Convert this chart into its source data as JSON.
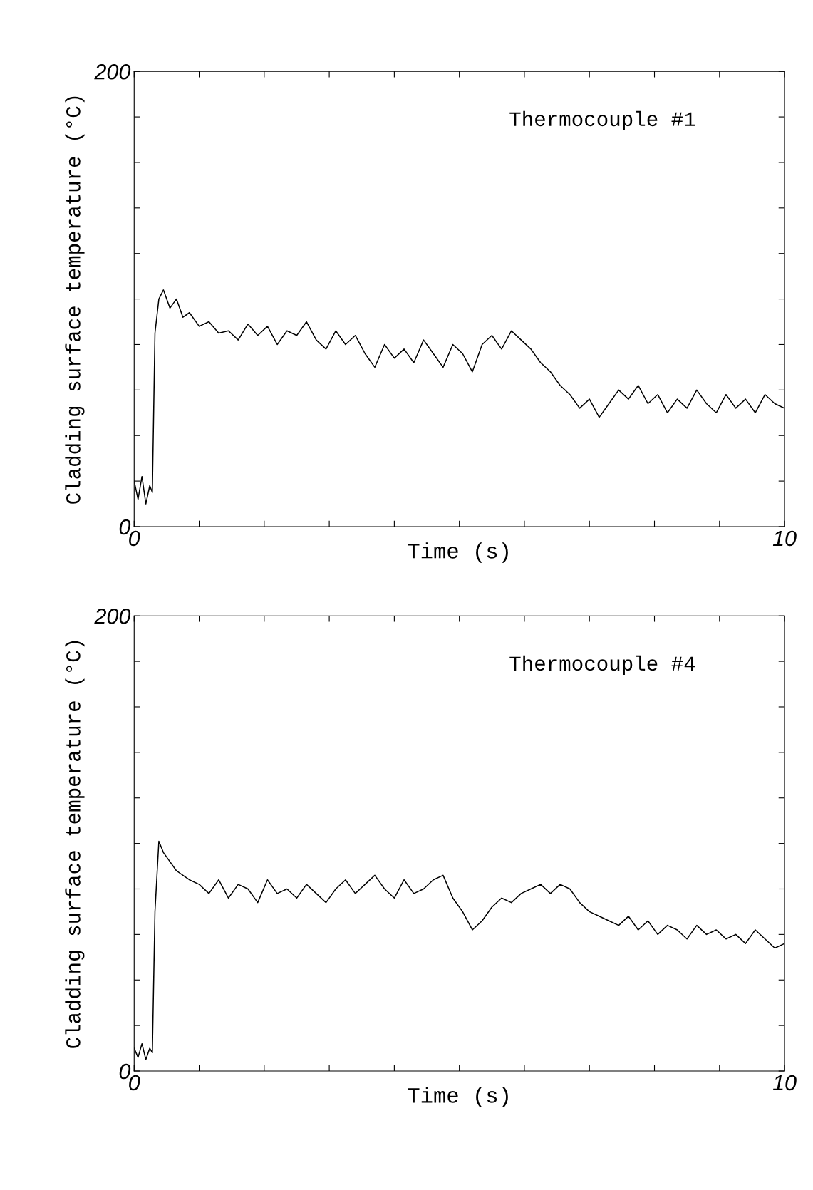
{
  "chart_data": [
    {
      "type": "line",
      "xlabel": "Time (s)",
      "ylabel": "Cladding surface temperature (°C)",
      "annotations": [
        "Thermocouple #1"
      ],
      "xlim": [
        0,
        10
      ],
      "ylim": [
        0,
        200
      ],
      "xticks": [
        0,
        {
          "value": 1,
          "label": null
        },
        {
          "value": 2,
          "label": null
        },
        {
          "value": 3,
          "label": null
        },
        {
          "value": 4,
          "label": null
        },
        {
          "value": 5,
          "label": null
        },
        {
          "value": 6,
          "label": null
        },
        {
          "value": 7,
          "label": null
        },
        {
          "value": 8,
          "label": null
        },
        {
          "value": 9,
          "label": null
        },
        10
      ],
      "yticks": [
        0,
        {
          "value": 20,
          "label": null
        },
        {
          "value": 40,
          "label": null
        },
        {
          "value": 60,
          "label": null
        },
        {
          "value": 80,
          "label": null
        },
        {
          "value": 100,
          "label": null
        },
        {
          "value": 120,
          "label": null
        },
        {
          "value": 140,
          "label": null
        },
        {
          "value": 160,
          "label": null
        },
        {
          "value": 180,
          "label": null
        },
        200
      ],
      "grid": false,
      "legend": false,
      "marker": "none",
      "line_style": "solid",
      "series": [
        {
          "color": "#000000",
          "x": [
            0,
            0.06,
            0.12,
            0.18,
            0.24,
            0.28,
            0.32,
            0.38,
            0.45,
            0.55,
            0.65,
            0.75,
            0.85,
            1.0,
            1.15,
            1.3,
            1.45,
            1.6,
            1.75,
            1.9,
            2.05,
            2.2,
            2.35,
            2.5,
            2.65,
            2.8,
            2.95,
            3.1,
            3.25,
            3.4,
            3.55,
            3.7,
            3.85,
            4.0,
            4.15,
            4.3,
            4.45,
            4.6,
            4.75,
            4.9,
            5.05,
            5.2,
            5.35,
            5.5,
            5.65,
            5.8,
            5.95,
            6.1,
            6.25,
            6.4,
            6.55,
            6.7,
            6.85,
            7.0,
            7.15,
            7.3,
            7.45,
            7.6,
            7.75,
            7.9,
            8.05,
            8.2,
            8.35,
            8.5,
            8.65,
            8.8,
            8.95,
            9.1,
            9.25,
            9.4,
            9.55,
            9.7,
            9.85,
            10.0
          ],
          "values": [
            20,
            12,
            22,
            10,
            18,
            15,
            85,
            100,
            104,
            96,
            100,
            92,
            94,
            88,
            90,
            85,
            86,
            82,
            89,
            84,
            88,
            80,
            86,
            84,
            90,
            82,
            78,
            86,
            80,
            84,
            76,
            70,
            80,
            74,
            78,
            72,
            82,
            76,
            70,
            80,
            76,
            68,
            80,
            84,
            78,
            86,
            82,
            78,
            72,
            68,
            62,
            58,
            52,
            56,
            48,
            54,
            60,
            56,
            62,
            54,
            58,
            50,
            56,
            52,
            60,
            54,
            50,
            58,
            52,
            56,
            50,
            58,
            54,
            52
          ]
        }
      ]
    },
    {
      "type": "line",
      "xlabel": "Time (s)",
      "ylabel": "Cladding surface temperature (°C)",
      "annotations": [
        "Thermocouple #4"
      ],
      "xlim": [
        0,
        10
      ],
      "ylim": [
        0,
        200
      ],
      "xticks": [
        0,
        {
          "value": 1,
          "label": null
        },
        {
          "value": 2,
          "label": null
        },
        {
          "value": 3,
          "label": null
        },
        {
          "value": 4,
          "label": null
        },
        {
          "value": 5,
          "label": null
        },
        {
          "value": 6,
          "label": null
        },
        {
          "value": 7,
          "label": null
        },
        {
          "value": 8,
          "label": null
        },
        {
          "value": 9,
          "label": null
        },
        10
      ],
      "yticks": [
        0,
        {
          "value": 20,
          "label": null
        },
        {
          "value": 40,
          "label": null
        },
        {
          "value": 60,
          "label": null
        },
        {
          "value": 80,
          "label": null
        },
        {
          "value": 100,
          "label": null
        },
        {
          "value": 120,
          "label": null
        },
        {
          "value": 140,
          "label": null
        },
        {
          "value": 160,
          "label": null
        },
        {
          "value": 180,
          "label": null
        },
        200
      ],
      "grid": false,
      "legend": false,
      "marker": "none",
      "line_style": "solid",
      "series": [
        {
          "color": "#000000",
          "x": [
            0,
            0.06,
            0.12,
            0.18,
            0.24,
            0.28,
            0.32,
            0.38,
            0.45,
            0.55,
            0.65,
            0.75,
            0.85,
            1.0,
            1.15,
            1.3,
            1.45,
            1.6,
            1.75,
            1.9,
            2.05,
            2.2,
            2.35,
            2.5,
            2.65,
            2.8,
            2.95,
            3.1,
            3.25,
            3.4,
            3.55,
            3.7,
            3.85,
            4.0,
            4.15,
            4.3,
            4.45,
            4.6,
            4.75,
            4.9,
            5.05,
            5.2,
            5.35,
            5.5,
            5.65,
            5.8,
            5.95,
            6.1,
            6.25,
            6.4,
            6.55,
            6.7,
            6.85,
            7.0,
            7.15,
            7.3,
            7.45,
            7.6,
            7.75,
            7.9,
            8.05,
            8.2,
            8.35,
            8.5,
            8.65,
            8.8,
            8.95,
            9.1,
            9.25,
            9.4,
            9.55,
            9.7,
            9.85,
            10.0
          ],
          "values": [
            10,
            6,
            12,
            5,
            10,
            8,
            70,
            101,
            96,
            92,
            88,
            86,
            84,
            82,
            78,
            84,
            76,
            82,
            80,
            74,
            84,
            78,
            80,
            76,
            82,
            78,
            74,
            80,
            84,
            78,
            82,
            86,
            80,
            76,
            84,
            78,
            80,
            84,
            86,
            76,
            70,
            62,
            66,
            72,
            76,
            74,
            78,
            80,
            82,
            78,
            82,
            80,
            74,
            70,
            68,
            66,
            64,
            68,
            62,
            66,
            60,
            64,
            62,
            58,
            64,
            60,
            62,
            58,
            60,
            56,
            62,
            58,
            54,
            56
          ]
        }
      ]
    }
  ]
}
